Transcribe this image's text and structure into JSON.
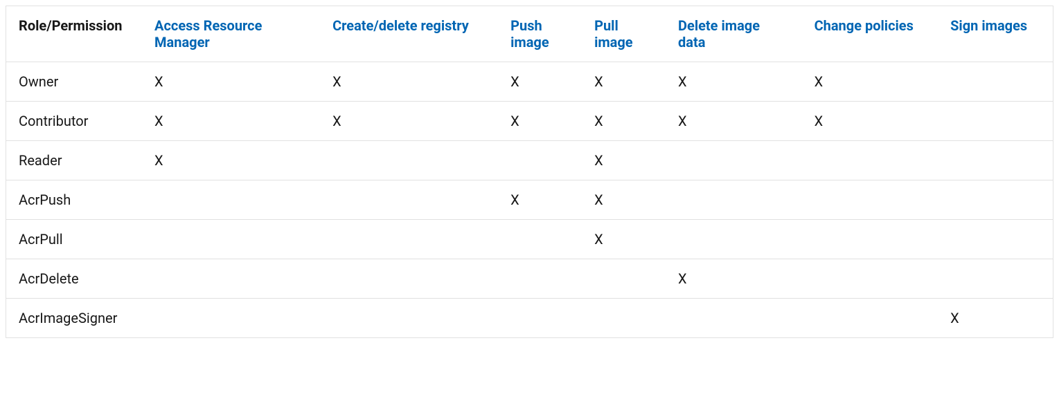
{
  "table": {
    "type": "table",
    "background_color": "#ffffff",
    "border_color": "#e1e1e1",
    "text_color": "#171717",
    "link_color": "#0065b3",
    "font_family": "Segoe UI",
    "header_fontsize": 20,
    "body_fontsize": 20,
    "check_mark": "X",
    "columns": [
      {
        "key": "role",
        "label": "Role/Permission",
        "is_link": false,
        "width_pct": 13
      },
      {
        "key": "access_resource_manager",
        "label": "Access Resource Manager",
        "is_link": true,
        "width_pct": 17
      },
      {
        "key": "create_delete_registry",
        "label": "Create/delete registry",
        "is_link": true,
        "width_pct": 17
      },
      {
        "key": "push_image",
        "label": "Push image",
        "is_link": true,
        "width_pct": 8
      },
      {
        "key": "pull_image",
        "label": "Pull image",
        "is_link": true,
        "width_pct": 8
      },
      {
        "key": "delete_image_data",
        "label": "Delete image data",
        "is_link": true,
        "width_pct": 13
      },
      {
        "key": "change_policies",
        "label": "Change policies",
        "is_link": true,
        "width_pct": 13
      },
      {
        "key": "sign_images",
        "label": "Sign images",
        "is_link": true,
        "width_pct": 11
      }
    ],
    "rows": [
      {
        "role": "Owner",
        "cells": [
          "X",
          "X",
          "X",
          "X",
          "X",
          "X",
          ""
        ]
      },
      {
        "role": "Contributor",
        "cells": [
          "X",
          "X",
          "X",
          "X",
          "X",
          "X",
          ""
        ]
      },
      {
        "role": "Reader",
        "cells": [
          "X",
          "",
          "",
          "X",
          "",
          "",
          ""
        ]
      },
      {
        "role": "AcrPush",
        "cells": [
          "",
          "",
          "X",
          "X",
          "",
          "",
          ""
        ]
      },
      {
        "role": "AcrPull",
        "cells": [
          "",
          "",
          "",
          "X",
          "",
          "",
          ""
        ]
      },
      {
        "role": "AcrDelete",
        "cells": [
          "",
          "",
          "",
          "",
          "X",
          "",
          ""
        ]
      },
      {
        "role": "AcrImageSigner",
        "cells": [
          "",
          "",
          "",
          "",
          "",
          "",
          "X"
        ]
      }
    ]
  }
}
